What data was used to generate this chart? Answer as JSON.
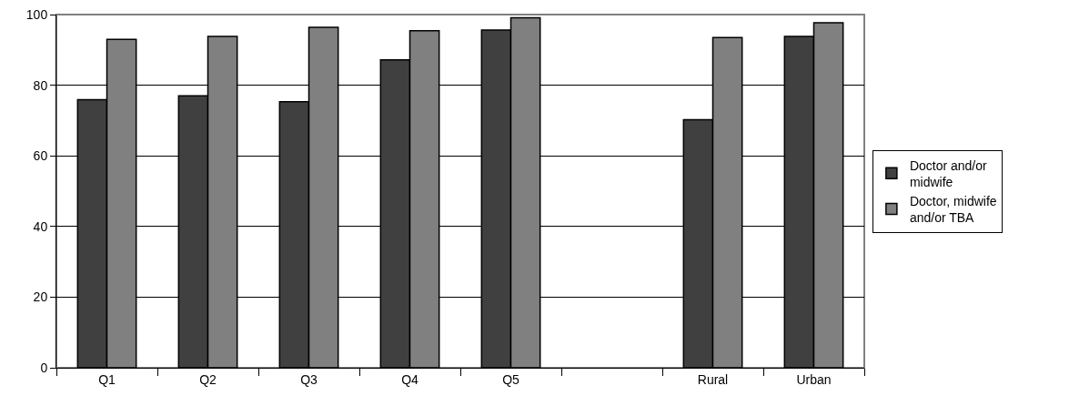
{
  "chart_data": {
    "type": "bar",
    "categories": [
      "Q1",
      "Q2",
      "Q3",
      "Q4",
      "Q5",
      null,
      "Rural",
      "Urban"
    ],
    "series": [
      {
        "name": "Doctor and/or midwife",
        "color": "#404040",
        "values": [
          75.9,
          77.0,
          75.3,
          87.2,
          95.6,
          null,
          70.2,
          93.8
        ]
      },
      {
        "name": "Doctor, midwife and/or TBA",
        "color": "#808080",
        "values": [
          93.0,
          93.8,
          96.4,
          95.4,
          99.1,
          null,
          93.5,
          97.7
        ]
      }
    ],
    "ylim": [
      0,
      100
    ],
    "yticks": [
      0,
      20,
      40,
      60,
      80,
      100
    ],
    "grid": "y",
    "legend": "right"
  }
}
